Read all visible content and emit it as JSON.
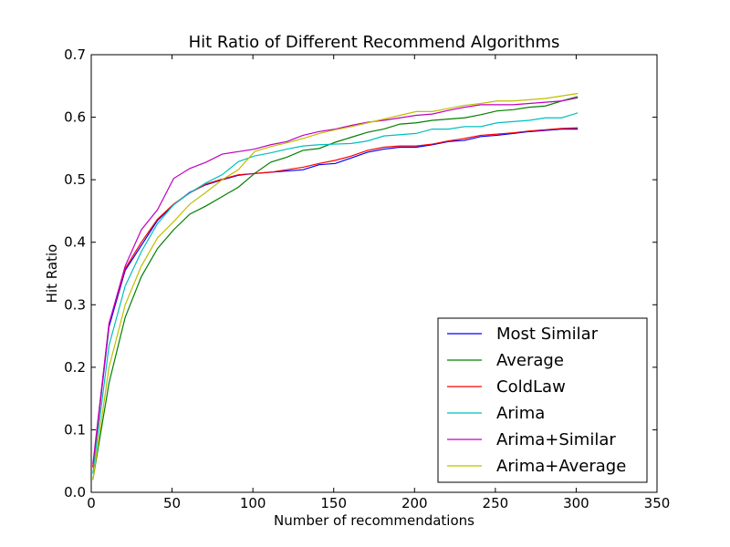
{
  "chart_data": {
    "type": "line",
    "title": "Hit Ratio of Different Recommend Algorithms",
    "xlabel": "Number of recommendations",
    "ylabel": "Hit Ratio",
    "xlim": [
      0,
      350
    ],
    "ylim": [
      0,
      0.7
    ],
    "xticks": [
      "0",
      "50",
      "100",
      "150",
      "200",
      "250",
      "300",
      "350"
    ],
    "yticks": [
      "0.0",
      "0.1",
      "0.2",
      "0.3",
      "0.4",
      "0.5",
      "0.6",
      "0.7"
    ],
    "grid": false,
    "legend_position": "lower-right",
    "x": [
      1,
      11,
      21,
      31,
      41,
      51,
      61,
      71,
      81,
      91,
      101,
      111,
      121,
      131,
      141,
      151,
      161,
      171,
      181,
      191,
      201,
      211,
      221,
      231,
      241,
      251,
      261,
      271,
      281,
      291,
      301
    ],
    "series": [
      {
        "name": "Most Similar",
        "color": "#0000ff",
        "values": [
          0.04,
          0.265,
          0.355,
          0.395,
          0.435,
          0.46,
          0.48,
          0.492,
          0.5,
          0.507,
          0.51,
          0.512,
          0.514,
          0.516,
          0.524,
          0.526,
          0.535,
          0.544,
          0.549,
          0.552,
          0.552,
          0.556,
          0.561,
          0.563,
          0.569,
          0.571,
          0.574,
          0.577,
          0.579,
          0.581,
          0.581
        ]
      },
      {
        "name": "Average",
        "color": "#008000",
        "values": [
          0.02,
          0.175,
          0.28,
          0.345,
          0.39,
          0.42,
          0.445,
          0.458,
          0.473,
          0.488,
          0.51,
          0.528,
          0.536,
          0.547,
          0.55,
          0.56,
          0.568,
          0.576,
          0.581,
          0.589,
          0.591,
          0.595,
          0.597,
          0.599,
          0.604,
          0.61,
          0.612,
          0.616,
          0.618,
          0.626,
          0.633
        ]
      },
      {
        "name": "ColdLaw",
        "color": "#ff0000",
        "values": [
          0.04,
          0.27,
          0.358,
          0.4,
          0.437,
          0.461,
          0.479,
          0.493,
          0.501,
          0.508,
          0.51,
          0.512,
          0.516,
          0.52,
          0.526,
          0.531,
          0.538,
          0.547,
          0.552,
          0.554,
          0.554,
          0.557,
          0.562,
          0.566,
          0.571,
          0.573,
          0.575,
          0.578,
          0.58,
          0.582,
          0.583
        ]
      },
      {
        "name": "Arima",
        "color": "#00bfbf",
        "values": [
          0.03,
          0.235,
          0.33,
          0.385,
          0.43,
          0.46,
          0.479,
          0.495,
          0.508,
          0.529,
          0.538,
          0.543,
          0.549,
          0.554,
          0.556,
          0.557,
          0.558,
          0.562,
          0.57,
          0.572,
          0.574,
          0.581,
          0.581,
          0.585,
          0.585,
          0.591,
          0.593,
          0.595,
          0.599,
          0.599,
          0.607
        ]
      },
      {
        "name": "Arima+Similar",
        "color": "#bf00bf",
        "values": [
          0.045,
          0.27,
          0.362,
          0.42,
          0.452,
          0.502,
          0.518,
          0.528,
          0.541,
          0.545,
          0.549,
          0.556,
          0.561,
          0.571,
          0.577,
          0.581,
          0.587,
          0.592,
          0.595,
          0.599,
          0.603,
          0.605,
          0.611,
          0.616,
          0.62,
          0.62,
          0.62,
          0.622,
          0.624,
          0.626,
          0.631
        ]
      },
      {
        "name": "Arima+Average",
        "color": "#bfbf00",
        "values": [
          0.02,
          0.2,
          0.3,
          0.362,
          0.407,
          0.433,
          0.461,
          0.48,
          0.5,
          0.516,
          0.545,
          0.553,
          0.559,
          0.566,
          0.574,
          0.58,
          0.585,
          0.591,
          0.597,
          0.603,
          0.609,
          0.609,
          0.614,
          0.619,
          0.622,
          0.626,
          0.626,
          0.628,
          0.63,
          0.634,
          0.638
        ]
      }
    ]
  }
}
